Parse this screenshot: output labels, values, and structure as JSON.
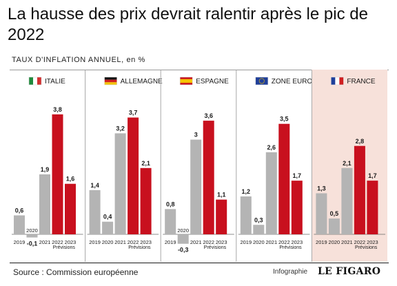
{
  "title": "La hausse des prix devrait ralentir après le pic de 2022",
  "subtitle": "TAUX D'INFLATION ANNUEL, en %",
  "source": "Source : Commission européenne",
  "credit": "Infographie",
  "logo": "LE FIGARO",
  "colors": {
    "historic": "#b4b4b4",
    "peak": "#c8101e",
    "highlight_bg": "#f7e1da",
    "divider": "#a8a8a8",
    "baseline": "#666666"
  },
  "chart_data": {
    "type": "bar",
    "categories": [
      "2019",
      "2020",
      "2021",
      "2022",
      "2023"
    ],
    "forecast_note": "Prévisions",
    "ylim": [
      -0.4,
      3.8
    ],
    "panels": [
      {
        "name": "ITALIE",
        "flag": "italy-flag",
        "values": [
          0.6,
          -0.1,
          1.9,
          3.8,
          1.6
        ],
        "labels": [
          "0,6",
          "-0,1",
          "1,9",
          "3,8",
          "1,6"
        ],
        "highlight": false
      },
      {
        "name": "ALLEMAGNE",
        "flag": "germany-flag",
        "values": [
          1.4,
          0.4,
          3.2,
          3.7,
          2.1
        ],
        "labels": [
          "1,4",
          "0,4",
          "3,2",
          "3,7",
          "2,1"
        ],
        "highlight": false
      },
      {
        "name": "ESPAGNE",
        "flag": "spain-flag",
        "values": [
          0.8,
          -0.3,
          3.0,
          3.6,
          1.1
        ],
        "labels": [
          "0,8",
          "-0,3",
          "3",
          "3,6",
          "1,1"
        ],
        "highlight": false
      },
      {
        "name": "ZONE EURO",
        "flag": "eu-flag",
        "values": [
          1.2,
          0.3,
          2.6,
          3.5,
          1.7
        ],
        "labels": [
          "1,2",
          "0,3",
          "2,6",
          "3,5",
          "1,7"
        ],
        "highlight": false
      },
      {
        "name": "FRANCE",
        "flag": "france-flag",
        "values": [
          1.3,
          0.5,
          2.1,
          2.8,
          1.7
        ],
        "labels": [
          "1,3",
          "0,5",
          "2,1",
          "2,8",
          "1,7"
        ],
        "highlight": true
      }
    ]
  }
}
